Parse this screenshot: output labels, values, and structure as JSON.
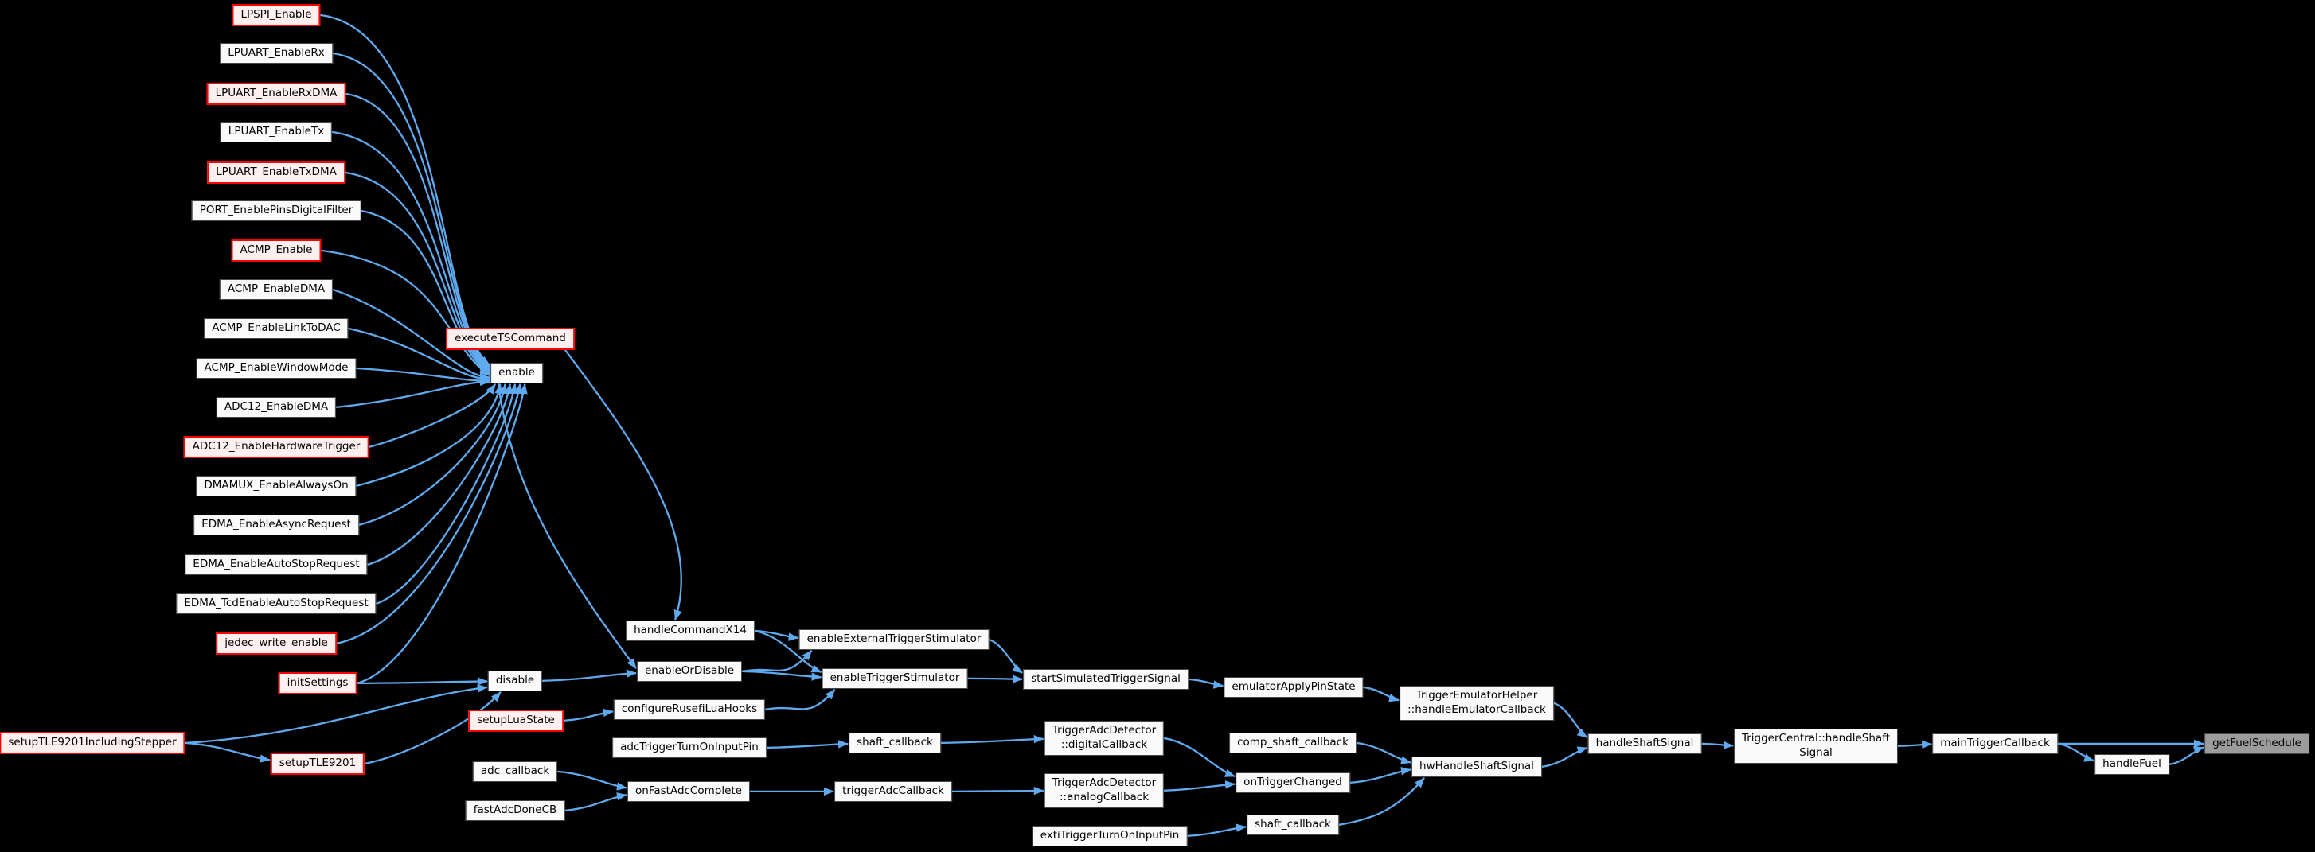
{
  "diagram": {
    "type": "call-graph",
    "focus_function": "getFuelSchedule",
    "colors": {
      "background": "#000000",
      "edge": "#5faaee",
      "node_fill": "#fafafa",
      "node_border": "#464646",
      "truncated_border": "#ff0000",
      "truncated_fill": "#fff0f0",
      "current_fill": "#9c9c9c",
      "text": "#000000"
    },
    "nodes": [
      {
        "id": "LPSPI_Enable",
        "label": "LPSPI_Enable",
        "style": "red"
      },
      {
        "id": "LPUART_EnableRx",
        "label": "LPUART_EnableRx",
        "style": "normal"
      },
      {
        "id": "LPUART_EnableRxDMA",
        "label": "LPUART_EnableRxDMA",
        "style": "red"
      },
      {
        "id": "LPUART_EnableTx",
        "label": "LPUART_EnableTx",
        "style": "normal"
      },
      {
        "id": "LPUART_EnableTxDMA",
        "label": "LPUART_EnableTxDMA",
        "style": "red"
      },
      {
        "id": "PORT_EnablePinsDigitalFilter",
        "label": "PORT_EnablePinsDigitalFilter",
        "style": "normal"
      },
      {
        "id": "ACMP_Enable",
        "label": "ACMP_Enable",
        "style": "red"
      },
      {
        "id": "ACMP_EnableDMA",
        "label": "ACMP_EnableDMA",
        "style": "normal"
      },
      {
        "id": "ACMP_EnableLinkToDAC",
        "label": "ACMP_EnableLinkToDAC",
        "style": "normal"
      },
      {
        "id": "ACMP_EnableWindowMode",
        "label": "ACMP_EnableWindowMode",
        "style": "normal"
      },
      {
        "id": "ADC12_EnableDMA",
        "label": "ADC12_EnableDMA",
        "style": "normal"
      },
      {
        "id": "ADC12_EnableHardwareTrigger",
        "label": "ADC12_EnableHardwareTrigger",
        "style": "red"
      },
      {
        "id": "DMAMUX_EnableAlwaysOn",
        "label": "DMAMUX_EnableAlwaysOn",
        "style": "normal"
      },
      {
        "id": "EDMA_EnableAsyncRequest",
        "label": "EDMA_EnableAsyncRequest",
        "style": "normal"
      },
      {
        "id": "EDMA_EnableAutoStopRequest",
        "label": "EDMA_EnableAutoStopRequest",
        "style": "normal"
      },
      {
        "id": "EDMA_TcdEnableAutoStopRequest",
        "label": "EDMA_TcdEnableAutoStopRequest",
        "style": "normal"
      },
      {
        "id": "jedec_write_enable",
        "label": "jedec_write_enable",
        "style": "red"
      },
      {
        "id": "initSettings",
        "label": "initSettings",
        "style": "red"
      },
      {
        "id": "setupTLE9201IncludingStepper",
        "label": "setupTLE9201IncludingStepper",
        "style": "red"
      },
      {
        "id": "setupTLE9201",
        "label": "setupTLE9201",
        "style": "red"
      },
      {
        "id": "executeTSCommand",
        "label": "executeTSCommand",
        "style": "red"
      },
      {
        "id": "enable",
        "label": "enable",
        "style": "normal"
      },
      {
        "id": "disable",
        "label": "disable",
        "style": "normal"
      },
      {
        "id": "setupLuaState",
        "label": "setupLuaState",
        "style": "red"
      },
      {
        "id": "adc_callback",
        "label": "adc_callback",
        "style": "normal"
      },
      {
        "id": "fastAdcDoneCB",
        "label": "fastAdcDoneCB",
        "style": "normal"
      },
      {
        "id": "handleCommandX14",
        "label": "handleCommandX14",
        "style": "normal"
      },
      {
        "id": "enableOrDisable",
        "label": "enableOrDisable",
        "style": "normal"
      },
      {
        "id": "configureRusefiLuaHooks",
        "label": "configureRusefiLuaHooks",
        "style": "normal"
      },
      {
        "id": "adcTriggerTurnOnInputPin",
        "label": "adcTriggerTurnOnInputPin",
        "style": "normal"
      },
      {
        "id": "onFastAdcComplete",
        "label": "onFastAdcComplete",
        "style": "normal"
      },
      {
        "id": "enableExternalTriggerStimulator",
        "label": "enableExternalTriggerStimulator",
        "style": "normal"
      },
      {
        "id": "enableTriggerStimulator",
        "label": "enableTriggerStimulator",
        "style": "normal"
      },
      {
        "id": "shaft_callback_1",
        "label": "shaft_callback",
        "style": "normal"
      },
      {
        "id": "triggerAdcCallback",
        "label": "triggerAdcCallback",
        "style": "normal"
      },
      {
        "id": "startSimulatedTriggerSignal",
        "label": "startSimulatedTriggerSignal",
        "style": "normal"
      },
      {
        "id": "TriggerAdcDetector_digitalCallback",
        "label": "TriggerAdcDetector\n::digitalCallback",
        "style": "normal"
      },
      {
        "id": "TriggerAdcDetector_analogCallback",
        "label": "TriggerAdcDetector\n::analogCallback",
        "style": "normal"
      },
      {
        "id": "extiTriggerTurnOnInputPin",
        "label": "extiTriggerTurnOnInputPin",
        "style": "normal"
      },
      {
        "id": "emulatorApplyPinState",
        "label": "emulatorApplyPinState",
        "style": "normal"
      },
      {
        "id": "comp_shaft_callback",
        "label": "comp_shaft_callback",
        "style": "normal"
      },
      {
        "id": "onTriggerChanged",
        "label": "onTriggerChanged",
        "style": "normal"
      },
      {
        "id": "shaft_callback_2",
        "label": "shaft_callback",
        "style": "normal"
      },
      {
        "id": "TriggerEmulatorHelper_handleEmulatorCallback",
        "label": "TriggerEmulatorHelper\n::handleEmulatorCallback",
        "style": "normal"
      },
      {
        "id": "hwHandleShaftSignal",
        "label": "hwHandleShaftSignal",
        "style": "normal"
      },
      {
        "id": "handleShaftSignal",
        "label": "handleShaftSignal",
        "style": "normal"
      },
      {
        "id": "TriggerCentral_handleShaftSignal",
        "label": "TriggerCentral::handleShaft\nSignal",
        "style": "normal"
      },
      {
        "id": "mainTriggerCallback",
        "label": "mainTriggerCallback",
        "style": "normal"
      },
      {
        "id": "handleFuel",
        "label": "handleFuel",
        "style": "normal"
      },
      {
        "id": "getFuelSchedule",
        "label": "getFuelSchedule",
        "style": "current"
      }
    ],
    "edges": [
      {
        "from": "LPSPI_Enable",
        "to": "enable"
      },
      {
        "from": "LPUART_EnableRx",
        "to": "enable"
      },
      {
        "from": "LPUART_EnableRxDMA",
        "to": "enable"
      },
      {
        "from": "LPUART_EnableTx",
        "to": "enable"
      },
      {
        "from": "LPUART_EnableTxDMA",
        "to": "enable"
      },
      {
        "from": "PORT_EnablePinsDigitalFilter",
        "to": "enable"
      },
      {
        "from": "ACMP_Enable",
        "to": "enable"
      },
      {
        "from": "ACMP_EnableDMA",
        "to": "enable"
      },
      {
        "from": "ACMP_EnableLinkToDAC",
        "to": "enable"
      },
      {
        "from": "ACMP_EnableWindowMode",
        "to": "enable"
      },
      {
        "from": "ADC12_EnableDMA",
        "to": "enable"
      },
      {
        "from": "ADC12_EnableHardwareTrigger",
        "to": "enable"
      },
      {
        "from": "DMAMUX_EnableAlwaysOn",
        "to": "enable"
      },
      {
        "from": "EDMA_EnableAsyncRequest",
        "to": "enable"
      },
      {
        "from": "EDMA_EnableAutoStopRequest",
        "to": "enable"
      },
      {
        "from": "EDMA_TcdEnableAutoStopRequest",
        "to": "enable"
      },
      {
        "from": "jedec_write_enable",
        "to": "enable"
      },
      {
        "from": "initSettings",
        "to": "enable"
      },
      {
        "from": "initSettings",
        "to": "disable"
      },
      {
        "from": "setupTLE9201IncludingStepper",
        "to": "disable"
      },
      {
        "from": "setupTLE9201IncludingStepper",
        "to": "setupTLE9201"
      },
      {
        "from": "setupTLE9201",
        "to": "disable"
      },
      {
        "from": "executeTSCommand",
        "to": "handleCommandX14"
      },
      {
        "from": "enable",
        "to": "enableOrDisable"
      },
      {
        "from": "disable",
        "to": "enableOrDisable"
      },
      {
        "from": "setupLuaState",
        "to": "configureRusefiLuaHooks"
      },
      {
        "from": "adc_callback",
        "to": "onFastAdcComplete"
      },
      {
        "from": "fastAdcDoneCB",
        "to": "onFastAdcComplete"
      },
      {
        "from": "handleCommandX14",
        "to": "enableExternalTriggerStimulator"
      },
      {
        "from": "handleCommandX14",
        "to": "enableTriggerStimulator"
      },
      {
        "from": "enableOrDisable",
        "to": "enableExternalTriggerStimulator"
      },
      {
        "from": "enableOrDisable",
        "to": "enableTriggerStimulator"
      },
      {
        "from": "configureRusefiLuaHooks",
        "to": "enableTriggerStimulator"
      },
      {
        "from": "adcTriggerTurnOnInputPin",
        "to": "shaft_callback_1"
      },
      {
        "from": "onFastAdcComplete",
        "to": "triggerAdcCallback"
      },
      {
        "from": "enableExternalTriggerStimulator",
        "to": "startSimulatedTriggerSignal"
      },
      {
        "from": "enableTriggerStimulator",
        "to": "startSimulatedTriggerSignal"
      },
      {
        "from": "shaft_callback_1",
        "to": "TriggerAdcDetector_digitalCallback"
      },
      {
        "from": "triggerAdcCallback",
        "to": "TriggerAdcDetector_analogCallback"
      },
      {
        "from": "startSimulatedTriggerSignal",
        "to": "emulatorApplyPinState"
      },
      {
        "from": "TriggerAdcDetector_digitalCallback",
        "to": "onTriggerChanged"
      },
      {
        "from": "TriggerAdcDetector_analogCallback",
        "to": "onTriggerChanged"
      },
      {
        "from": "extiTriggerTurnOnInputPin",
        "to": "shaft_callback_2"
      },
      {
        "from": "emulatorApplyPinState",
        "to": "TriggerEmulatorHelper_handleEmulatorCallback"
      },
      {
        "from": "comp_shaft_callback",
        "to": "hwHandleShaftSignal"
      },
      {
        "from": "onTriggerChanged",
        "to": "hwHandleShaftSignal"
      },
      {
        "from": "shaft_callback_2",
        "to": "hwHandleShaftSignal"
      },
      {
        "from": "TriggerEmulatorHelper_handleEmulatorCallback",
        "to": "handleShaftSignal"
      },
      {
        "from": "hwHandleShaftSignal",
        "to": "handleShaftSignal"
      },
      {
        "from": "handleShaftSignal",
        "to": "TriggerCentral_handleShaftSignal"
      },
      {
        "from": "TriggerCentral_handleShaftSignal",
        "to": "mainTriggerCallback"
      },
      {
        "from": "mainTriggerCallback",
        "to": "getFuelSchedule"
      },
      {
        "from": "mainTriggerCallback",
        "to": "handleFuel"
      },
      {
        "from": "handleFuel",
        "to": "getFuelSchedule"
      }
    ]
  }
}
